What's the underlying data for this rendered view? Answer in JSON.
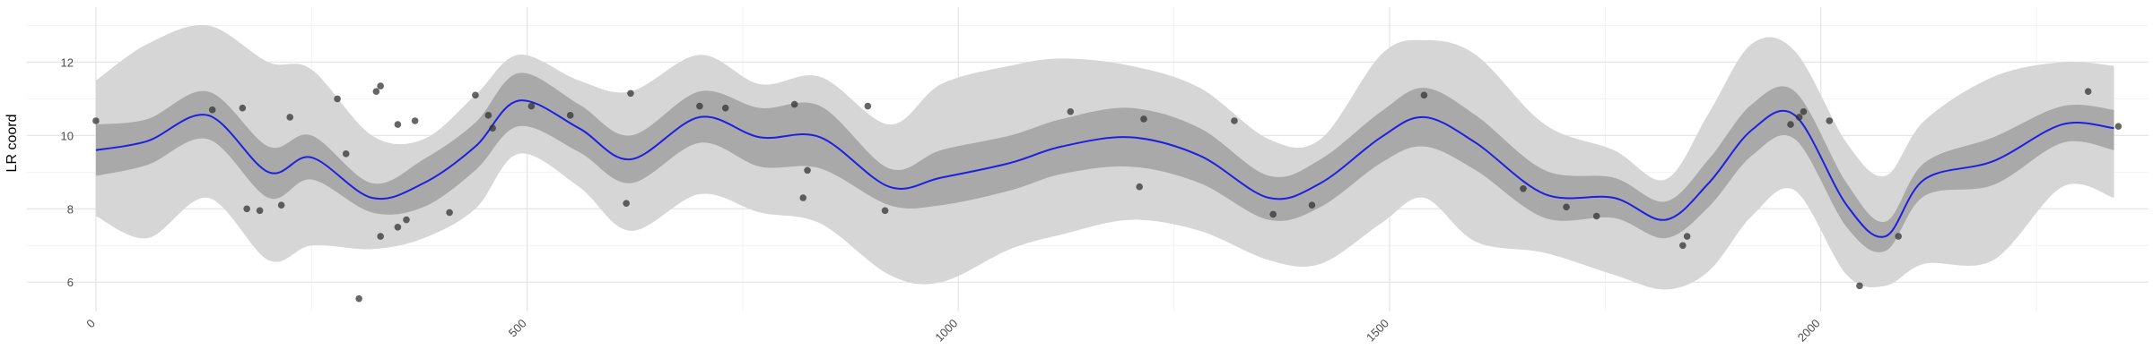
{
  "chart_data": {
    "type": "line",
    "title": "",
    "xlabel": "",
    "ylabel": "LR coord",
    "xlim": [
      -80,
      2380
    ],
    "ylim": [
      5.2,
      13.5
    ],
    "x_ticks": [
      0,
      500,
      1000,
      1500,
      2000
    ],
    "x_tick_labels": [
      "0",
      "500",
      "1000",
      "1500",
      "2000"
    ],
    "y_ticks": [
      6,
      8,
      10,
      12
    ],
    "y_tick_labels": [
      "6",
      "8",
      "10",
      "12"
    ],
    "grid": true,
    "legend": "none",
    "colors": {
      "fit_line": "#1f1fe0",
      "inner_band": "#a9a9a9",
      "outer_band": "#d6d6d6",
      "points": "#333333",
      "grid_major": "#e6e6e6",
      "grid_minor": "#f2f2f2"
    },
    "fit": {
      "x": [
        0,
        60,
        130,
        200,
        250,
        320,
        380,
        440,
        490,
        560,
        620,
        700,
        770,
        840,
        920,
        980,
        1060,
        1120,
        1200,
        1280,
        1360,
        1420,
        1490,
        1540,
        1600,
        1680,
        1760,
        1820,
        1870,
        1920,
        1970,
        2030,
        2075,
        2120,
        2200,
        2280,
        2340
      ],
      "y": [
        9.6,
        9.85,
        10.55,
        9.0,
        9.4,
        8.3,
        8.7,
        9.7,
        10.95,
        10.2,
        9.35,
        10.5,
        9.95,
        9.95,
        8.6,
        8.85,
        9.25,
        9.7,
        9.95,
        9.45,
        8.3,
        8.7,
        9.95,
        10.5,
        9.8,
        8.4,
        8.3,
        7.7,
        8.7,
        10.15,
        10.55,
        8.1,
        7.25,
        8.8,
        9.3,
        10.3,
        10.2
      ],
      "inner_upper": [
        10.3,
        10.45,
        11.2,
        9.7,
        10.0,
        8.7,
        9.35,
        10.35,
        11.7,
        10.85,
        10.0,
        11.2,
        10.75,
        10.8,
        9.1,
        9.6,
        10.0,
        10.45,
        10.75,
        10.2,
        8.9,
        9.35,
        10.65,
        11.3,
        10.55,
        9.05,
        8.85,
        8.2,
        9.35,
        10.85,
        11.2,
        8.7,
        7.65,
        9.25,
        9.95,
        10.8,
        10.7
      ],
      "inner_lower": [
        8.9,
        9.2,
        9.9,
        8.3,
        8.8,
        7.9,
        8.05,
        9.05,
        10.25,
        9.55,
        8.7,
        9.8,
        9.15,
        9.1,
        8.1,
        8.1,
        8.5,
        8.95,
        9.15,
        8.7,
        7.7,
        8.05,
        9.25,
        9.7,
        9.05,
        7.75,
        7.75,
        7.2,
        8.05,
        9.45,
        9.9,
        7.5,
        6.85,
        8.35,
        8.65,
        9.8,
        9.6
      ],
      "outer_upper": [
        11.5,
        12.5,
        13.0,
        12.0,
        11.8,
        10.0,
        9.9,
        11.1,
        12.2,
        11.5,
        11.2,
        12.2,
        11.4,
        11.6,
        10.3,
        11.4,
        11.9,
        12.1,
        11.9,
        11.3,
        9.9,
        9.9,
        12.2,
        12.6,
        12.2,
        10.3,
        9.6,
        8.8,
        10.6,
        12.5,
        12.3,
        9.8,
        8.9,
        10.4,
        11.6,
        12.0,
        11.9
      ],
      "outer_lower": [
        7.8,
        7.2,
        8.3,
        6.6,
        7.0,
        6.9,
        7.2,
        8.0,
        9.5,
        8.6,
        7.4,
        8.4,
        7.9,
        7.6,
        6.2,
        6.0,
        6.9,
        7.3,
        7.7,
        7.4,
        6.6,
        6.5,
        7.6,
        8.3,
        7.1,
        6.8,
        6.2,
        5.8,
        6.3,
        7.8,
        8.5,
        6.2,
        5.9,
        6.5,
        6.6,
        8.6,
        8.3
      ]
    },
    "points": [
      {
        "x": 0,
        "y": 10.4
      },
      {
        "x": 135,
        "y": 10.7
      },
      {
        "x": 170,
        "y": 10.75
      },
      {
        "x": 175,
        "y": 8.0
      },
      {
        "x": 190,
        "y": 7.95
      },
      {
        "x": 215,
        "y": 8.1
      },
      {
        "x": 225,
        "y": 10.5
      },
      {
        "x": 280,
        "y": 11.0
      },
      {
        "x": 290,
        "y": 9.5
      },
      {
        "x": 305,
        "y": 5.55
      },
      {
        "x": 325,
        "y": 11.2
      },
      {
        "x": 330,
        "y": 11.35
      },
      {
        "x": 330,
        "y": 7.25
      },
      {
        "x": 350,
        "y": 10.3
      },
      {
        "x": 350,
        "y": 7.5
      },
      {
        "x": 360,
        "y": 7.7
      },
      {
        "x": 370,
        "y": 10.4
      },
      {
        "x": 410,
        "y": 7.9
      },
      {
        "x": 440,
        "y": 11.1
      },
      {
        "x": 455,
        "y": 10.55
      },
      {
        "x": 460,
        "y": 10.2
      },
      {
        "x": 505,
        "y": 10.8
      },
      {
        "x": 550,
        "y": 10.55
      },
      {
        "x": 615,
        "y": 8.15
      },
      {
        "x": 620,
        "y": 11.15
      },
      {
        "x": 700,
        "y": 10.8
      },
      {
        "x": 730,
        "y": 10.75
      },
      {
        "x": 810,
        "y": 10.85
      },
      {
        "x": 820,
        "y": 8.3
      },
      {
        "x": 825,
        "y": 9.05
      },
      {
        "x": 895,
        "y": 10.8
      },
      {
        "x": 915,
        "y": 7.95
      },
      {
        "x": 1130,
        "y": 10.65
      },
      {
        "x": 1210,
        "y": 8.6
      },
      {
        "x": 1215,
        "y": 10.45
      },
      {
        "x": 1320,
        "y": 10.4
      },
      {
        "x": 1365,
        "y": 7.85
      },
      {
        "x": 1410,
        "y": 8.1
      },
      {
        "x": 1540,
        "y": 11.1
      },
      {
        "x": 1655,
        "y": 8.55
      },
      {
        "x": 1705,
        "y": 8.05
      },
      {
        "x": 1740,
        "y": 7.8
      },
      {
        "x": 1840,
        "y": 7.0
      },
      {
        "x": 1845,
        "y": 7.25
      },
      {
        "x": 1965,
        "y": 10.3
      },
      {
        "x": 1975,
        "y": 10.5
      },
      {
        "x": 1980,
        "y": 10.65
      },
      {
        "x": 2010,
        "y": 10.4
      },
      {
        "x": 2045,
        "y": 5.9
      },
      {
        "x": 2090,
        "y": 7.25
      },
      {
        "x": 2310,
        "y": 11.2
      },
      {
        "x": 2345,
        "y": 10.25
      }
    ]
  }
}
